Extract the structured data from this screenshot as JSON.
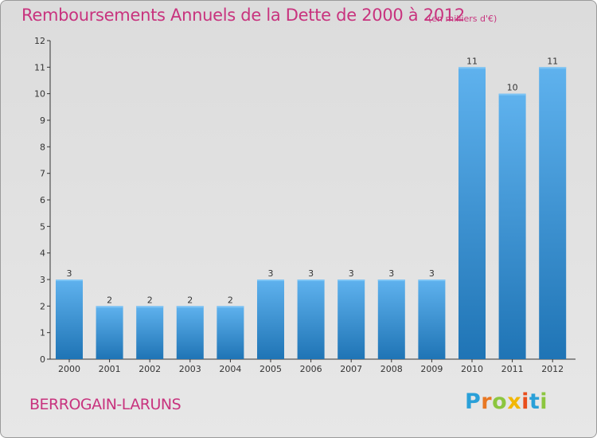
{
  "title": "Remboursements Annuels de la Dette de 2000 à 2012",
  "subtitle": "(en milliers d'€)",
  "commune": "BERROGAIN-LARUNS",
  "logo": [
    "P",
    "r",
    "o",
    "x",
    "i",
    "t",
    "i"
  ],
  "colors": {
    "title": "#c8337e",
    "bar_top": "#5fb2ee",
    "bar_bottom": "#1f74b5",
    "axis": "#333333"
  },
  "chart_data": {
    "type": "bar",
    "title": "Remboursements Annuels de la Dette de 2000 à 2012",
    "subtitle": "(en milliers d'€)",
    "xlabel": "",
    "ylabel": "",
    "categories": [
      "2000",
      "2001",
      "2002",
      "2003",
      "2004",
      "2005",
      "2006",
      "2007",
      "2008",
      "2009",
      "2010",
      "2011",
      "2012"
    ],
    "values": [
      3,
      2,
      2,
      2,
      2,
      3,
      3,
      3,
      3,
      3,
      11,
      10,
      11
    ],
    "data_labels": [
      "3",
      "2",
      "2",
      "2",
      "2",
      "3",
      "3",
      "3",
      "3",
      "3",
      "11",
      "10",
      "11"
    ],
    "ylim": [
      0,
      12
    ],
    "yticks": [
      "0",
      "1",
      "2",
      "3",
      "4",
      "5",
      "6",
      "7",
      "8",
      "9",
      "10",
      "11",
      "12"
    ],
    "grid": false,
    "legend": "none"
  }
}
